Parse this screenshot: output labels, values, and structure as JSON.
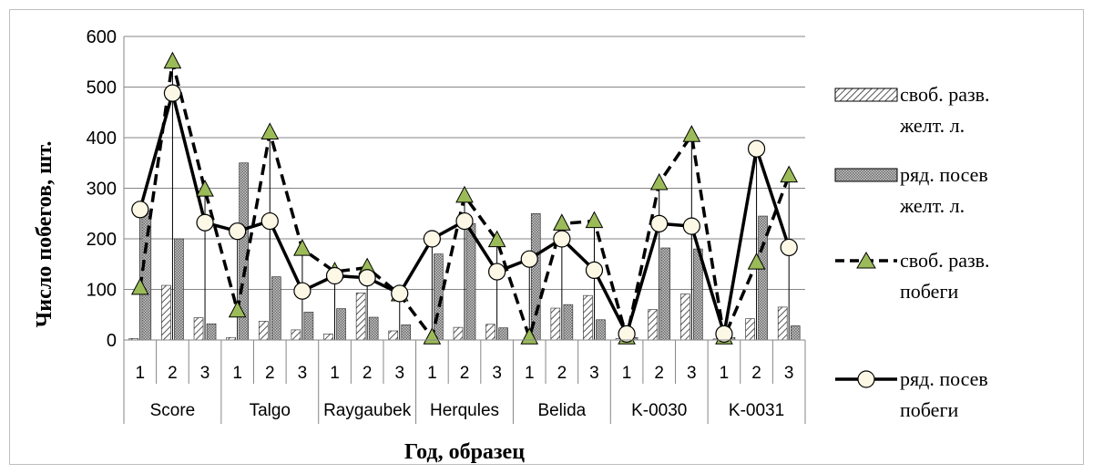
{
  "chart_data": {
    "type": "bar+line",
    "xlabel": "Год, образец",
    "ylabel": "Число побегов, шт.",
    "ylim": [
      0,
      600
    ],
    "yticks": [
      0,
      100,
      200,
      300,
      400,
      500,
      600
    ],
    "grid": "horizontal",
    "legend_position": "right",
    "groups": [
      "Score",
      "Talgo",
      "Raygaubek",
      "Herqules",
      "Belida",
      "K-0030",
      "K-0031"
    ],
    "subcategories": [
      "1",
      "2",
      "3"
    ],
    "series": [
      {
        "name": "своб. разв. желт. л.",
        "type": "bar",
        "pattern": "diagonal-hatch",
        "values": [
          3,
          108,
          44,
          5,
          37,
          20,
          12,
          93,
          18,
          0,
          25,
          31,
          0,
          63,
          88,
          3,
          60,
          91,
          2,
          42,
          65
        ]
      },
      {
        "name": "ряд. посев желт. л.",
        "type": "bar",
        "pattern": "dotted",
        "values": [
          255,
          200,
          32,
          350,
          125,
          55,
          62,
          45,
          30,
          170,
          230,
          24,
          250,
          70,
          40,
          5,
          182,
          180,
          5,
          245,
          28
        ]
      },
      {
        "name": "своб. разв. побеги",
        "type": "line",
        "style": "dashed",
        "marker": "triangle",
        "values": [
          103,
          550,
          297,
          58,
          410,
          180,
          135,
          143,
          90,
          5,
          285,
          197,
          5,
          230,
          235,
          5,
          310,
          405,
          5,
          153,
          325
        ]
      },
      {
        "name": "ряд. посев побеги",
        "type": "line",
        "style": "solid",
        "marker": "circle",
        "values": [
          258,
          488,
          232,
          215,
          235,
          97,
          127,
          123,
          92,
          200,
          235,
          135,
          160,
          200,
          138,
          12,
          230,
          225,
          12,
          378,
          183
        ]
      }
    ]
  }
}
